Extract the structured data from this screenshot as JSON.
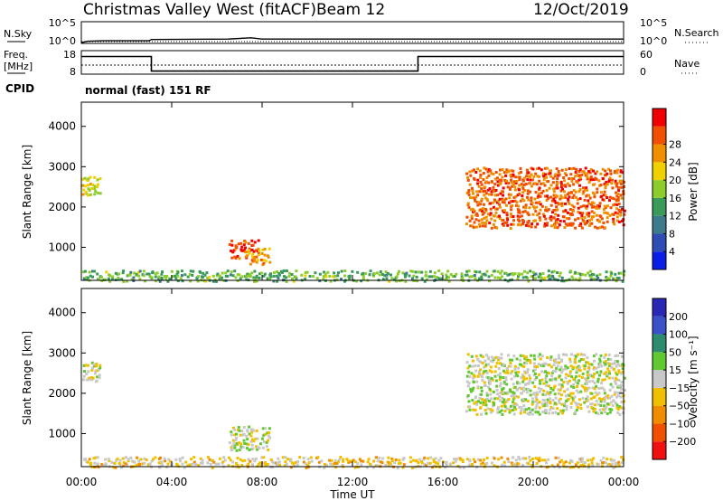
{
  "header": {
    "station": "Christmas Valley West (fitACF)",
    "beam": "Beam 12",
    "date": "12/Oct/2019"
  },
  "noise_panel": {
    "left_label": "N.Sky",
    "right_label": "N.Search",
    "left_ticks": [
      "10^5",
      "10^0"
    ],
    "right_ticks": [
      "10^5",
      "10^0"
    ]
  },
  "freq_panel": {
    "left_label_1": "Freq.",
    "left_label_2": "[MHz]",
    "right_label": "Nave",
    "left_ticks": [
      "18",
      "8"
    ],
    "right_ticks": [
      "60",
      "0"
    ]
  },
  "cpid": {
    "label": "CPID",
    "text": "normal (fast) 151 RF"
  },
  "power_panel": {
    "ylabel": "Slant Range [km]",
    "yticks": [
      "1000",
      "2000",
      "3000",
      "4000"
    ],
    "colorbar_label": "Power [dB]",
    "colorbar_ticks": [
      "4",
      "8",
      "12",
      "16",
      "20",
      "24",
      "28"
    ],
    "colorbar_colors": [
      "#0a1ee6",
      "#2e4cb4",
      "#3c7a8c",
      "#3a9a5a",
      "#8ccc2c",
      "#f0d000",
      "#f09000",
      "#f05000",
      "#f00000"
    ]
  },
  "velocity_panel": {
    "ylabel": "Slant Range [km]",
    "yticks": [
      "1000",
      "2000",
      "3000",
      "4000"
    ],
    "colorbar_label": "Velocity [m s⁻¹]",
    "colorbar_ticks": [
      "200",
      "100",
      "50",
      "15",
      "−15",
      "−50",
      "−100",
      "−200"
    ],
    "colorbar_colors": [
      "#2828b4",
      "#3a50c8",
      "#2e8c6e",
      "#60c830",
      "#c8c8c8",
      "#f0c000",
      "#f08c00",
      "#f05000",
      "#f01010"
    ]
  },
  "time_axis": {
    "tick_labels": [
      "00:00",
      "04:00",
      "08:00",
      "12:00",
      "16:00",
      "20:00",
      "00:00"
    ],
    "xlabel": "Time UT"
  },
  "chart_data": [
    {
      "type": "line",
      "panel": "noise",
      "x_hours": [
        0,
        0.3,
        1,
        3,
        3.1,
        6.5,
        7.5,
        8,
        9,
        12,
        15,
        20,
        24
      ],
      "values_log10": [
        0.2,
        0.5,
        0.6,
        0.6,
        0.9,
        1.0,
        1.3,
        1.0,
        1.0,
        1.0,
        1.0,
        1.0,
        1.0
      ],
      "ylim": [
        0,
        5
      ]
    },
    {
      "type": "line",
      "panel": "frequency",
      "x_hours": [
        0,
        3.1,
        3.1,
        14.9,
        14.9,
        24
      ],
      "values": [
        15.5,
        15.5,
        9.3,
        9.3,
        15.5,
        15.5
      ],
      "ylim": [
        8,
        18
      ]
    },
    {
      "type": "heatmap",
      "panel": "power",
      "x_range_hours": [
        0,
        24
      ],
      "y_range_km": [
        180,
        4600
      ],
      "value_unit": "dB",
      "value_range": [
        0,
        32
      ],
      "scatter_regions": [
        {
          "t0": 0.0,
          "t1": 0.8,
          "r0": 2300,
          "r1": 2800,
          "v": 18
        },
        {
          "t0": 6.5,
          "t1": 7.8,
          "r0": 700,
          "r1": 1200,
          "v": 28
        },
        {
          "t0": 7.2,
          "t1": 8.3,
          "r0": 600,
          "r1": 1000,
          "v": 22
        },
        {
          "t0": 17.0,
          "t1": 24.0,
          "r0": 1500,
          "r1": 3000,
          "v": 26
        },
        {
          "t0": 0.0,
          "t1": 24.0,
          "r0": 180,
          "r1": 450,
          "v": 14
        }
      ]
    },
    {
      "type": "heatmap",
      "panel": "velocity",
      "x_range_hours": [
        0,
        24
      ],
      "y_range_km": [
        180,
        4600
      ],
      "value_unit": "m s-1",
      "value_range": [
        -250,
        250
      ],
      "scatter_regions": [
        {
          "t0": 0.0,
          "t1": 0.8,
          "r0": 2300,
          "r1": 2800,
          "v": 0
        },
        {
          "t0": 6.5,
          "t1": 8.3,
          "r0": 600,
          "r1": 1200,
          "v": 0
        },
        {
          "t0": 17.0,
          "t1": 24.0,
          "r0": 1500,
          "r1": 3000,
          "v": 0
        },
        {
          "t0": 0.0,
          "t1": 24.0,
          "r0": 180,
          "r1": 450,
          "v": -40
        }
      ]
    }
  ]
}
